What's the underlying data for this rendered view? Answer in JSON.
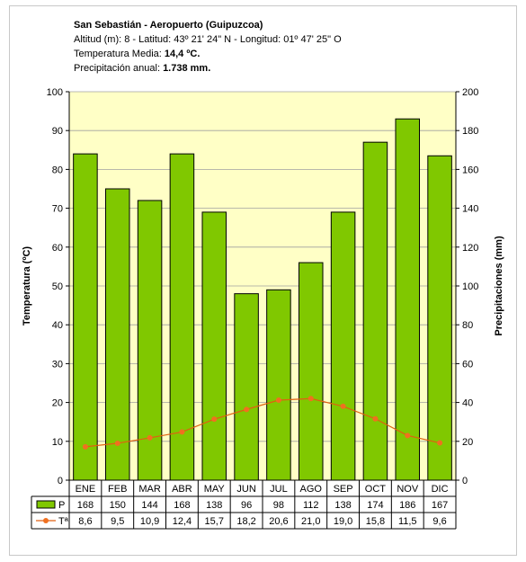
{
  "header": {
    "title": "San Sebastián - Aeropuerto (Guipuzcoa)",
    "location": "Altitud (m): 8 -  Latitud: 43º 21' 24\" N -  Longitud: 01º 47' 25\" O",
    "temp_label": "Temperatura Media: ",
    "temp_value": "14,4 ºC.",
    "prec_label": "Precipitación anual: ",
    "prec_value": "1.738 mm."
  },
  "colors": {
    "plot_bg": "#ffffc6",
    "bar_fill": "#80c800",
    "bar_stroke": "#000000",
    "line": "#e06010",
    "marker": "#f07020"
  },
  "chart_data": {
    "type": "bar",
    "categories": [
      "ENE",
      "FEB",
      "MAR",
      "ABR",
      "MAY",
      "JUN",
      "JUL",
      "AGO",
      "SEP",
      "OCT",
      "NOV",
      "DIC"
    ],
    "series": [
      {
        "name": "P",
        "type": "bar",
        "axis": "right",
        "values": [
          168,
          150,
          144,
          168,
          138,
          96,
          98,
          112,
          138,
          174,
          186,
          167
        ]
      },
      {
        "name": "Tª",
        "type": "line",
        "axis": "left",
        "values": [
          8.6,
          9.5,
          10.9,
          12.4,
          15.7,
          18.2,
          20.6,
          21.0,
          19.0,
          15.8,
          11.5,
          9.6
        ]
      }
    ],
    "table_labels": [
      [
        "168",
        "150",
        "144",
        "168",
        "138",
        "96",
        "98",
        "112",
        "138",
        "174",
        "186",
        "167"
      ],
      [
        "8,6",
        "9,5",
        "10,9",
        "12,4",
        "15,7",
        "18,2",
        "20,6",
        "21,0",
        "19,0",
        "15,8",
        "11,5",
        "9,6"
      ]
    ],
    "ylabel_left": "Temperatura (ºC)",
    "ylabel_right": "Precipitaciones (mm)",
    "ylim_left": [
      0,
      100
    ],
    "ylim_right": [
      0,
      200
    ],
    "yticks_left": [
      0,
      10,
      20,
      30,
      40,
      50,
      60,
      70,
      80,
      90,
      100
    ],
    "yticks_right": [
      0,
      20,
      40,
      60,
      80,
      100,
      120,
      140,
      160,
      180,
      200
    ],
    "grid": true
  }
}
